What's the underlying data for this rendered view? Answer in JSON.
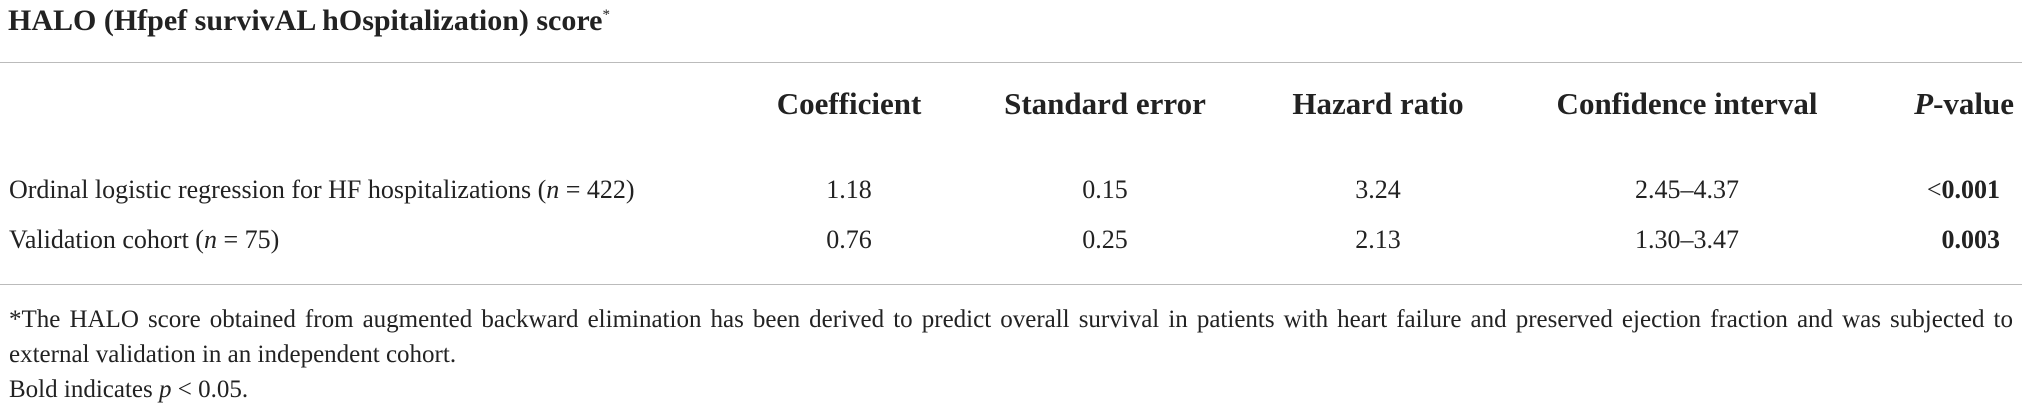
{
  "title": [
    {
      "t": "HALO (Hfpef survivAL hOspitalization) score"
    },
    {
      "t": "*",
      "sup": true
    }
  ],
  "table": {
    "headers": [
      [
        {
          "t": "Coefficient"
        }
      ],
      [
        {
          "t": "Standard error"
        }
      ],
      [
        {
          "t": "Hazard ratio"
        }
      ],
      [
        {
          "t": "Confidence interval"
        }
      ],
      [
        {
          "t": "P",
          "i": true
        },
        {
          "t": "-value"
        }
      ]
    ],
    "rows": [
      [
        [
          {
            "t": "Ordinal logistic regression for HF hospitalizations ("
          },
          {
            "t": "n",
            "i": true
          },
          {
            "t": " = 422)"
          }
        ],
        [
          {
            "t": "1.18"
          }
        ],
        [
          {
            "t": "0.15"
          }
        ],
        [
          {
            "t": "3.24"
          }
        ],
        [
          {
            "t": "2.45–4.37"
          }
        ],
        [
          {
            "t": "<"
          },
          {
            "t": "0.001",
            "b": true
          }
        ]
      ],
      [
        [
          {
            "t": "Validation cohort ("
          },
          {
            "t": "n",
            "i": true
          },
          {
            "t": " = 75)"
          }
        ],
        [
          {
            "t": "0.76"
          }
        ],
        [
          {
            "t": "0.25"
          }
        ],
        [
          {
            "t": "2.13"
          }
        ],
        [
          {
            "t": "1.30–3.47"
          }
        ],
        [
          {
            "t": "0.003",
            "b": true
          }
        ]
      ]
    ]
  },
  "footnotes": [
    [
      {
        "t": "*The HALO score obtained from augmented backward elimination has been derived to predict overall survival in patients with heart failure and preserved ejection fraction and was subjected to external validation in an independent cohort."
      }
    ],
    [
      {
        "t": "Bold indicates "
      },
      {
        "t": "p",
        "i": true
      },
      {
        "t": " < 0.05."
      }
    ]
  ]
}
